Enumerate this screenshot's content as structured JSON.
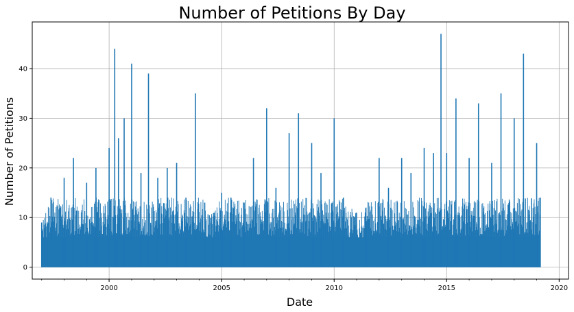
{
  "chart_data": {
    "type": "line",
    "title": "Number of Petitions By Day",
    "xlabel": "Date",
    "ylabel": "Number of Petitions",
    "xlim": [
      "1996-08-01",
      "2020-06-01"
    ],
    "ylim": [
      -2.4,
      49.4
    ],
    "x_ticks": [
      {
        "value": "2000-01-01",
        "label": "2000"
      },
      {
        "value": "2005-01-01",
        "label": "2005"
      },
      {
        "value": "2010-01-01",
        "label": "2010"
      },
      {
        "value": "2015-01-01",
        "label": "2015"
      },
      {
        "value": "2020-01-01",
        "label": "2020"
      }
    ],
    "y_ticks": [
      0,
      10,
      20,
      30,
      40
    ],
    "grid": true,
    "color": "#1f77b4",
    "series": [
      {
        "x": [
          "1997-01-01",
          "1997-06-01",
          "1998-01-01",
          "1998-06-01",
          "1999-01-01",
          "1999-06-01",
          "2000-01-01",
          "2000-04-01",
          "2000-06-01",
          "2000-09-01",
          "2001-01-01",
          "2001-06-01",
          "2001-10-01",
          "2002-03-01",
          "2002-08-01",
          "2003-01-01",
          "2003-06-01",
          "2003-11-01",
          "2004-04-01",
          "2004-09-01",
          "2005-01-01",
          "2005-06-01",
          "2006-01-01",
          "2006-06-01",
          "2007-01-01",
          "2007-06-01",
          "2008-01-01",
          "2008-06-01",
          "2009-01-01",
          "2009-06-01",
          "2010-01-01",
          "2010-06-01",
          "2011-01-01",
          "2011-06-01",
          "2012-01-01",
          "2012-06-01",
          "2013-01-01",
          "2013-06-01",
          "2014-01-01",
          "2014-06-01",
          "2014-10-01",
          "2015-01-01",
          "2015-06-01",
          "2016-01-01",
          "2016-06-01",
          "2017-01-01",
          "2017-06-01",
          "2018-01-01",
          "2018-06-01",
          "2019-01-01",
          "2019-03-01"
        ],
        "y": [
          9,
          14,
          18,
          22,
          17,
          20,
          24,
          44,
          26,
          30,
          41,
          19,
          39,
          18,
          20,
          21,
          14,
          35,
          13,
          11,
          15,
          14,
          13,
          22,
          32,
          16,
          27,
          31,
          25,
          19,
          30,
          14,
          11,
          12,
          22,
          16,
          22,
          19,
          24,
          23,
          47,
          23,
          34,
          22,
          33,
          21,
          35,
          30,
          43,
          25,
          14
        ]
      }
    ]
  }
}
